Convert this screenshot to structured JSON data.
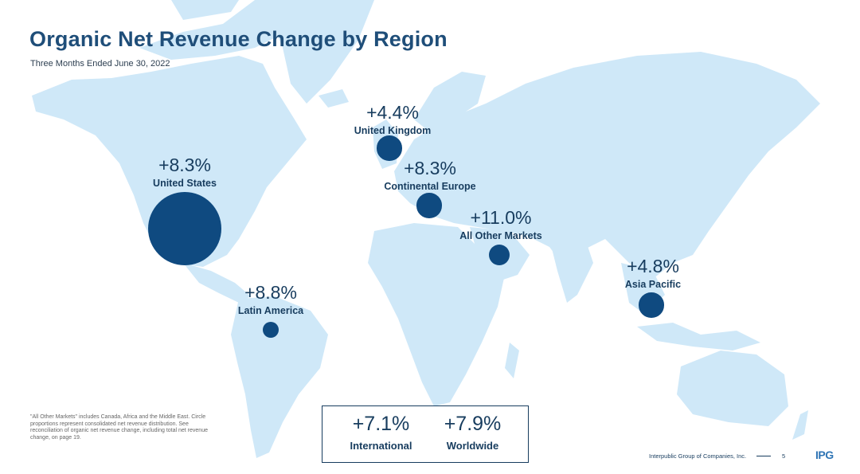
{
  "title": "Organic Net Revenue Change by Region",
  "subtitle": "Three Months Ended June 30, 2022",
  "colors": {
    "land": "#cfe8f8",
    "marker": "#0f4a80",
    "text": "#173c5e",
    "title": "#1f4e79"
  },
  "regions": [
    {
      "name": "United States",
      "value": "+8.3%",
      "share": 0.62
    },
    {
      "name": "Latin America",
      "value": "+8.8%",
      "share": 0.03
    },
    {
      "name": "United Kingdom",
      "value": "+4.4%",
      "share": 0.07
    },
    {
      "name": "Continental Europe",
      "value": "+8.3%",
      "share": 0.07
    },
    {
      "name": "All Other Markets",
      "value": "+11.0%",
      "share": 0.05
    },
    {
      "name": "Asia Pacific",
      "value": "+4.8%",
      "share": 0.07
    }
  ],
  "summary": [
    {
      "value": "+7.1%",
      "label": "International"
    },
    {
      "value": "+7.9%",
      "label": "Worldwide"
    }
  ],
  "footnote": "\"All Other Markets\" includes Canada, Africa and the Middle East. Circle proportions represent consolidated net revenue distribution. See reconciliation of organic net revenue change, including total net revenue change, on page 19.",
  "footer": {
    "company": "Interpublic Group of Companies, Inc.",
    "page": "5",
    "logo": "IPG"
  }
}
